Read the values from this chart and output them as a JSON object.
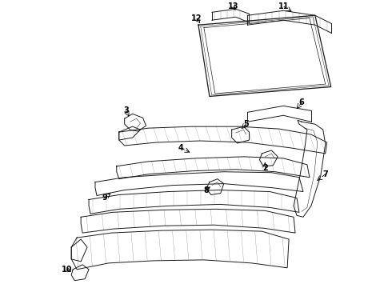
{
  "background_color": "#ffffff",
  "line_color": "#1a1a1a",
  "label_color": "#000000",
  "fig_width": 4.9,
  "fig_height": 3.6,
  "dpi": 100,
  "lw": 0.7,
  "fontsize": 7.0
}
